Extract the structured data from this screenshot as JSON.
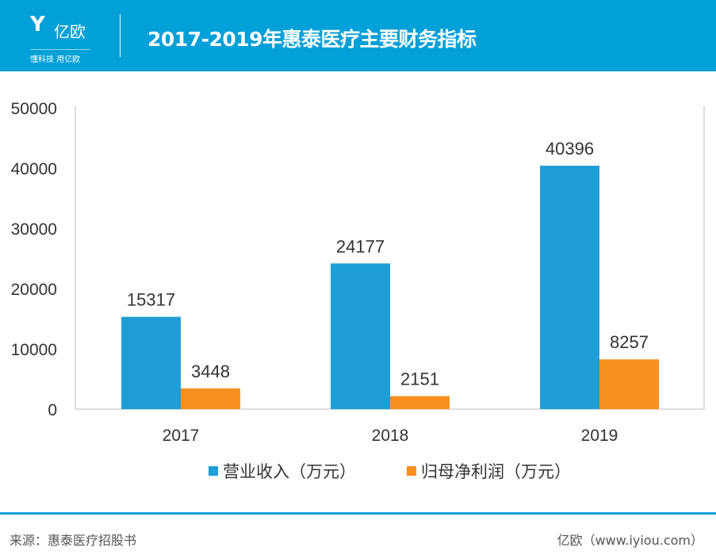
{
  "header": {
    "logo_name": "亿欧",
    "logo_tagline": "懂科技 用亿欧",
    "title": "2017-2019年惠泰医疗主要财务指标"
  },
  "chart_data": {
    "type": "bar",
    "title": "2017-2019年惠泰医疗主要财务指标",
    "categories": [
      "2017",
      "2018",
      "2019"
    ],
    "series": [
      {
        "name": "营业收入（万元）",
        "values": [
          15317,
          24177,
          40396
        ],
        "color": "#1f9ed6"
      },
      {
        "name": "归母净利润（万元）",
        "values": [
          3448,
          2151,
          8257
        ],
        "color": "#f7901e"
      }
    ],
    "ylim": [
      0,
      50000
    ],
    "yticks": [
      0,
      10000,
      20000,
      30000,
      40000,
      50000
    ],
    "grid": false,
    "legend": "bottom"
  },
  "footer": {
    "source": "来源：惠泰医疗招股书",
    "site": "亿欧（www.iyiou.com）"
  }
}
